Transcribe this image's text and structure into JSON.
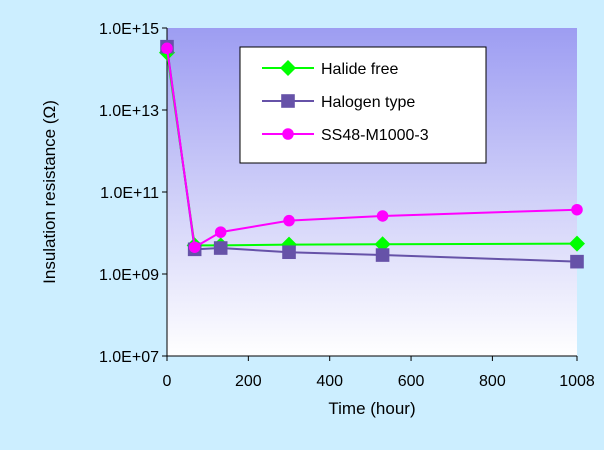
{
  "chart_data": {
    "type": "line",
    "xlabel": "Time (hour)",
    "ylabel": "Insulation resistance (Ω)",
    "y_scale": "log10",
    "xlim": [
      0,
      1008
    ],
    "ylim": [
      10000000.0,
      1000000000000000.0
    ],
    "x_ticks": [
      {
        "value": 0,
        "label": "0"
      },
      {
        "value": 200,
        "label": "200"
      },
      {
        "value": 400,
        "label": "400"
      },
      {
        "value": 600,
        "label": "600"
      },
      {
        "value": 800,
        "label": "800"
      },
      {
        "value": 1008,
        "label": "1008"
      }
    ],
    "y_ticks": [
      {
        "value": 10000000.0,
        "label": "1.0E+07"
      },
      {
        "value": 1000000000.0,
        "label": "1.0E+09"
      },
      {
        "value": 100000000000.0,
        "label": "1.0E+11"
      },
      {
        "value": 10000000000000.0,
        "label": "1.0E+13"
      },
      {
        "value": 1000000000000000.0,
        "label": "1.0E+15"
      }
    ],
    "legend_position": "top-right",
    "series": [
      {
        "name": "Halide free",
        "color": "#00ff00",
        "marker": "diamond",
        "x": [
          0,
          68,
          132,
          300,
          530,
          1008
        ],
        "y": [
          250000000000000.0,
          5000000000.0,
          5000000000.0,
          5200000000.0,
          5300000000.0,
          5500000000.0
        ]
      },
      {
        "name": "Halogen type",
        "color": "#6652a8",
        "marker": "square",
        "x": [
          0,
          68,
          132,
          300,
          530,
          1008
        ],
        "y": [
          350000000000000.0,
          4000000000.0,
          4300000000.0,
          3400000000.0,
          2900000000.0,
          2000000000.0
        ]
      },
      {
        "name": "SS48-M1000-3",
        "color": "#ff00ff",
        "marker": "circle",
        "x": [
          0,
          68,
          132,
          300,
          530,
          1008
        ],
        "y": [
          320000000000000.0,
          4500000000.0,
          10500000000.0,
          20000000000.0,
          26000000000.0,
          37000000000.0
        ]
      }
    ]
  }
}
